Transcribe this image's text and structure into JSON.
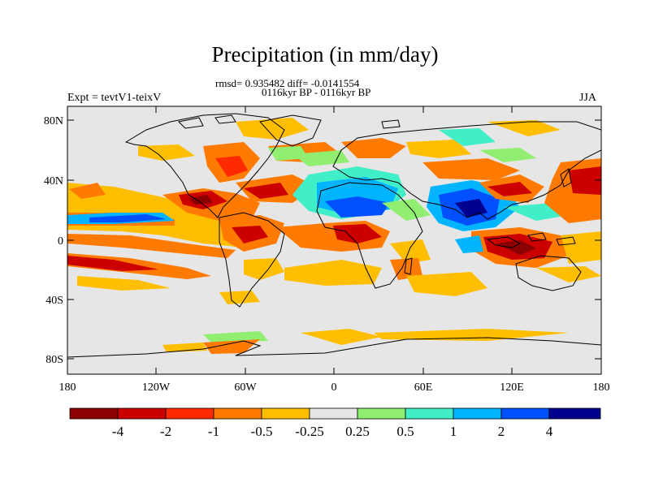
{
  "title": "Precipitation (in mm/day)",
  "stats": {
    "line1": "rmsd= 0.935482 diff= -0.0141554",
    "line2": "0116kyr BP - 0116kyr BP"
  },
  "experiment": "Expt = tevtV1-teixV",
  "season": "JJA",
  "axes": {
    "lat_ticks": [
      {
        "value": 80,
        "label": "80N"
      },
      {
        "value": 40,
        "label": "40N"
      },
      {
        "value": 0,
        "label": "0"
      },
      {
        "value": -40,
        "label": "40S"
      },
      {
        "value": -80,
        "label": "80S"
      }
    ],
    "lon_ticks": [
      {
        "value": -180,
        "label": "180"
      },
      {
        "value": -120,
        "label": "120W"
      },
      {
        "value": -60,
        "label": "60W"
      },
      {
        "value": 0,
        "label": "0"
      },
      {
        "value": 60,
        "label": "60E"
      },
      {
        "value": 120,
        "label": "120E"
      },
      {
        "value": 180,
        "label": "180"
      }
    ],
    "lon_range": [
      -180,
      180
    ],
    "lat_range": [
      -90,
      90
    ]
  },
  "colorbar": {
    "colors": [
      "#8b0000",
      "#cd0000",
      "#ff2a00",
      "#ff7a00",
      "#ffbf00",
      "#e6e6e6",
      "#90ee70",
      "#40eec8",
      "#00b4ff",
      "#0050ff",
      "#000090"
    ],
    "labels": [
      "-4",
      "-2",
      "-1",
      "-0.5",
      "-0.25",
      "0.25",
      "0.5",
      "1",
      "2",
      "4"
    ]
  },
  "colors": {
    "ocean_background": "#e6e6e6",
    "coastline": "#000000"
  }
}
